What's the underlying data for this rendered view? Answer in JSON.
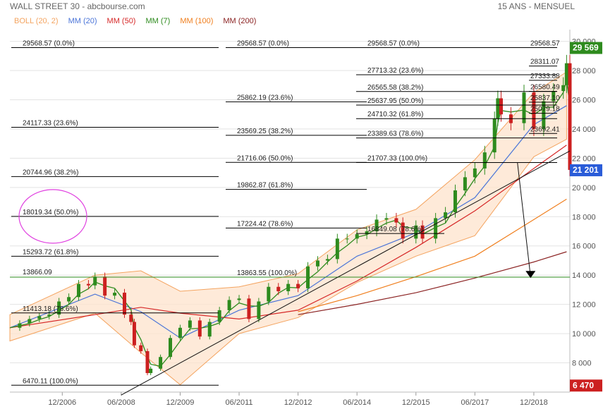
{
  "header": {
    "title": "WALL STREET 30 - abcbourse.com",
    "period": "15 ANS - MENSUEL"
  },
  "legend": [
    {
      "label": "BOLL (20, 2)",
      "color": "#f4a460"
    },
    {
      "label": "MM (20)",
      "color": "#4a74d8"
    },
    {
      "label": "MM (50)",
      "color": "#d62828"
    },
    {
      "label": "MM (7)",
      "color": "#2e8b1e"
    },
    {
      "label": "MM (100)",
      "color": "#f07f1e"
    },
    {
      "label": "MM (200)",
      "color": "#8b2323"
    }
  ],
  "price_tags": [
    {
      "value": 29569,
      "label": "29 569",
      "color": "#2e8b1e"
    },
    {
      "value": 21201,
      "label": "21 201",
      "color": "#2a5cd8"
    },
    {
      "value": 6470,
      "label": "6 470",
      "color": "#cc2020"
    }
  ],
  "support_label": {
    "value": 13866.09,
    "text": "13866.09"
  },
  "chart_data": {
    "type": "candlestick",
    "title": "WALL STREET 30",
    "ylim": [
      6000,
      30800
    ],
    "y_ticks": [
      8000,
      10000,
      12000,
      14000,
      16000,
      18000,
      20000,
      22000,
      24000,
      26000,
      28000,
      30000
    ],
    "x_ticks": [
      "12/2006",
      "06/2008",
      "12/2009",
      "06/2011",
      "12/2012",
      "06/2014",
      "12/2015",
      "06/2017",
      "12/2018"
    ],
    "x_tick_dates": [
      "2006-12",
      "2008-06",
      "2009-12",
      "2011-06",
      "2012-12",
      "2014-06",
      "2015-12",
      "2017-06",
      "2018-12"
    ],
    "x_range": [
      "2005-08",
      "2019-11"
    ],
    "close_series": {
      "dates": [
        "2005-08",
        "2005-11",
        "2006-02",
        "2006-05",
        "2006-08",
        "2006-11",
        "2007-02",
        "2007-05",
        "2007-08",
        "2007-10",
        "2008-01",
        "2008-04",
        "2008-07",
        "2008-09",
        "2008-10",
        "2008-12",
        "2009-02",
        "2009-03",
        "2009-06",
        "2009-09",
        "2009-12",
        "2010-03",
        "2010-06",
        "2010-09",
        "2010-12",
        "2011-03",
        "2011-06",
        "2011-09",
        "2011-12",
        "2012-03",
        "2012-06",
        "2012-09",
        "2012-12",
        "2013-03",
        "2013-06",
        "2013-09",
        "2013-12",
        "2014-03",
        "2014-06",
        "2014-09",
        "2014-12",
        "2015-03",
        "2015-06",
        "2015-08",
        "2015-12",
        "2016-02",
        "2016-06",
        "2016-09",
        "2016-12",
        "2017-03",
        "2017-06",
        "2017-09",
        "2017-12",
        "2018-01",
        "2018-02",
        "2018-05",
        "2018-09",
        "2018-12",
        "2019-03",
        "2019-06",
        "2019-09",
        "2019-10",
        "2019-11"
      ],
      "values": [
        10400,
        10700,
        11000,
        11200,
        11300,
        12200,
        12500,
        13400,
        13300,
        13900,
        12600,
        12800,
        11300,
        10800,
        9200,
        8800,
        7300,
        7600,
        8400,
        9700,
        10400,
        10900,
        9800,
        10800,
        11600,
        12300,
        12400,
        11000,
        12200,
        13200,
        12900,
        13400,
        13100,
        14600,
        15000,
        15100,
        16500,
        16500,
        16800,
        17000,
        17800,
        17900,
        17600,
        16500,
        17400,
        16500,
        17900,
        18300,
        19800,
        20700,
        21300,
        22400,
        24700,
        26100,
        25000,
        24400,
        26500,
        24000,
        25900,
        26600,
        27000,
        28500,
        21201
      ]
    },
    "moving_averages": [
      {
        "name": "MM (20)",
        "points": [
          [
            "2005-08",
            10400
          ],
          [
            "2007-10",
            12700
          ],
          [
            "2008-12",
            11500
          ],
          [
            "2009-12",
            9700
          ],
          [
            "2011-06",
            11600
          ],
          [
            "2012-12",
            12600
          ],
          [
            "2014-06",
            15300
          ],
          [
            "2015-12",
            16900
          ],
          [
            "2017-06",
            19300
          ],
          [
            "2018-12",
            24300
          ],
          [
            "2019-10",
            25600
          ]
        ]
      },
      {
        "name": "MM (50)",
        "points": [
          [
            "2005-08",
            10400
          ],
          [
            "2007-10",
            11300
          ],
          [
            "2008-12",
            11800
          ],
          [
            "2009-12",
            11400
          ],
          [
            "2011-06",
            11000
          ],
          [
            "2012-12",
            11600
          ],
          [
            "2014-06",
            13600
          ],
          [
            "2015-12",
            15900
          ],
          [
            "2017-06",
            18400
          ],
          [
            "2018-12",
            21300
          ],
          [
            "2019-10",
            22900
          ]
        ]
      },
      {
        "name": "MM (100)",
        "points": [
          [
            "2012-12",
            11500
          ],
          [
            "2014-06",
            12600
          ],
          [
            "2015-12",
            13900
          ],
          [
            "2017-06",
            15300
          ],
          [
            "2018-12",
            17800
          ],
          [
            "2019-10",
            19200
          ]
        ]
      },
      {
        "name": "MM (200)",
        "points": [
          [
            "2012-12",
            11300
          ],
          [
            "2014-06",
            12000
          ],
          [
            "2015-12",
            12800
          ],
          [
            "2017-06",
            13800
          ],
          [
            "2018-12",
            14900
          ],
          [
            "2019-10",
            15600
          ]
        ]
      }
    ],
    "fibonacci": [
      {
        "group": "left",
        "levels": [
          {
            "price": 29568.57,
            "label": "29568.57  (0.0%)"
          },
          {
            "price": 24117.33,
            "label": "24117.33  (23.6%)"
          },
          {
            "price": 20744.96,
            "label": "20744.96  (38.2%)"
          },
          {
            "price": 18019.34,
            "label": "18019.34  (50.0%)"
          },
          {
            "price": 15293.72,
            "label": "15293.72  (61.8%)"
          },
          {
            "price": 11413.18,
            "label": "11413.18  (78.6%)"
          },
          {
            "price": 6470.11,
            "label": "6470.11  (100.0%)"
          }
        ]
      },
      {
        "group": "middle",
        "levels": [
          {
            "price": 29568.57,
            "label": "29568.57  (0.0%)"
          },
          {
            "price": 25862.19,
            "label": "25862.19  (23.6%)"
          },
          {
            "price": 23569.25,
            "label": "23569.25  (38.2%)"
          },
          {
            "price": 21716.06,
            "label": "21716.06  (50.0%)"
          },
          {
            "price": 19862.87,
            "label": "19862.87  (61.8%)"
          },
          {
            "price": 17224.42,
            "label": "17224.42  (78.6%)"
          },
          {
            "price": 13863.55,
            "label": "13863.55  (100.0%)"
          }
        ]
      },
      {
        "group": "right",
        "levels": [
          {
            "price": 29568.57,
            "label": "29568.57  (0.0%)"
          },
          {
            "price": 27713.32,
            "label": "27713.32  (23.6%)"
          },
          {
            "price": 26565.58,
            "label": "26565.58  (38.2%)"
          },
          {
            "price": 25637.95,
            "label": "25637.95  (50.0%)"
          },
          {
            "price": 24710.32,
            "label": "24710.32  (61.8%)"
          },
          {
            "price": 23389.63,
            "label": "23389.63  (78.6%)"
          },
          {
            "price": 21707.33,
            "label": "21707.33  (100.0%)"
          }
        ]
      },
      {
        "group": "far-right",
        "levels": [
          {
            "price": 29568.57,
            "label": "29568.57"
          },
          {
            "price": 28311.07,
            "label": "28311.07"
          },
          {
            "price": 27333.88,
            "label": "27333.88"
          },
          {
            "price": 26580.49,
            "label": "26580.49"
          },
          {
            "price": 25837.1,
            "label": "25837.10"
          },
          {
            "price": 25079.18,
            "label": "25079.18"
          },
          {
            "price": 23692.41,
            "label": "23692.41"
          }
        ]
      },
      {
        "group": "inner",
        "levels": [
          {
            "price": 16849.08,
            "label": "16849.08  (78.6%)"
          }
        ]
      }
    ],
    "horizontal_support": 13866.09,
    "trendlines": [
      {
        "name": "long-term-uptrend",
        "points": [
          [
            "2008-06",
            5800
          ],
          [
            "2019-11",
            22500
          ]
        ]
      },
      {
        "name": "target-arrow",
        "points": [
          [
            "2018-07",
            21700
          ],
          [
            "2018-11",
            13900
          ]
        ]
      }
    ],
    "annotations": [
      {
        "type": "circle",
        "around": "18019.34  (50.0%)"
      }
    ]
  }
}
